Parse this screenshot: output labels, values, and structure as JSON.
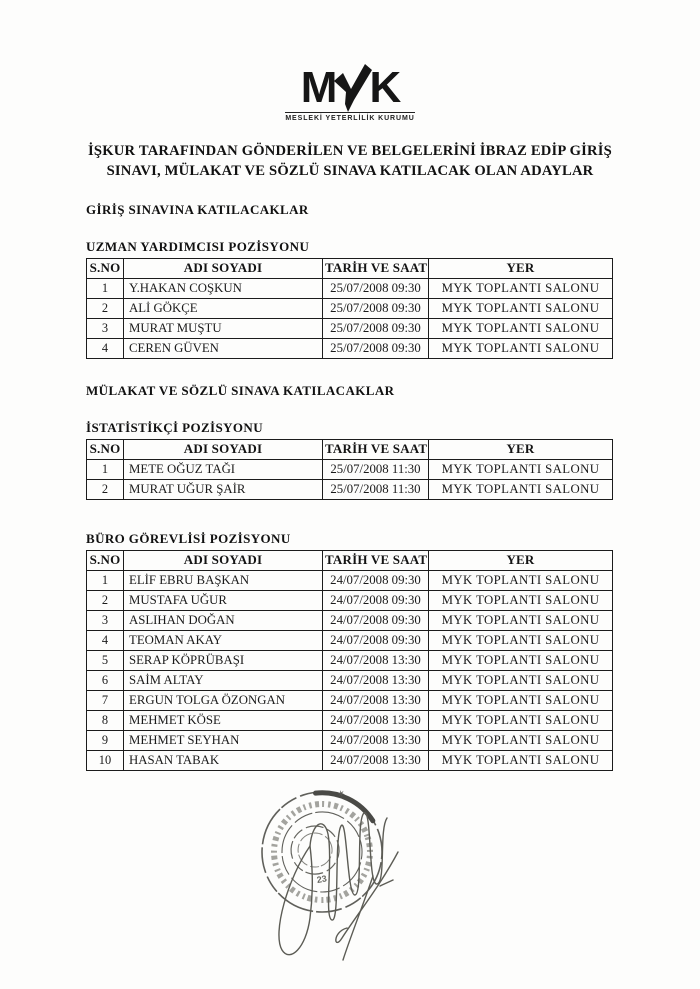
{
  "page": {
    "background": "#fdfdfc",
    "text_color": "#141414"
  },
  "logo": {
    "m": "M",
    "k": "K",
    "checkmark_icon": "check-mark-as-letter-Y",
    "caption": "MESLEKİ YETERLİLİK KURUMU"
  },
  "title": {
    "line1": "İŞKUR TARAFINDAN GÖNDERİLEN VE BELGELERİNİ İBRAZ EDİP GİRİŞ",
    "line2": "SINAVI, MÜLAKAT VE SÖZLÜ SINAVA KATILACAK OLAN ADAYLAR"
  },
  "sections": [
    {
      "heading": "GİRİŞ SINAVINA KATILACAKLAR",
      "tables": [
        {
          "caption": "UZMAN YARDIMCISI POZİSYONU",
          "columns": [
            "S.NO",
            "ADI SOYADI",
            "TARİH VE SAAT",
            "YER"
          ],
          "rows": [
            [
              "1",
              "Y.HAKAN COŞKUN",
              "25/07/2008 09:30",
              "MYK TOPLANTI SALONU"
            ],
            [
              "2",
              "ALİ GÖKÇE",
              "25/07/2008 09:30",
              "MYK TOPLANTI SALONU"
            ],
            [
              "3",
              "MURAT MUŞTU",
              "25/07/2008 09:30",
              "MYK TOPLANTI SALONU"
            ],
            [
              "4",
              "CEREN GÜVEN",
              "25/07/2008 09:30",
              "MYK TOPLANTI SALONU"
            ]
          ]
        }
      ]
    },
    {
      "heading": "MÜLAKAT VE SÖZLÜ SINAVA KATILACAKLAR",
      "tables": [
        {
          "caption": "İSTATİSTİKÇİ POZİSYONU",
          "columns": [
            "S.NO",
            "ADI SOYADI",
            "TARİH VE SAAT",
            "YER"
          ],
          "rows": [
            [
              "1",
              "METE OĞUZ TAĞI",
              "25/07/2008 11:30",
              "MYK TOPLANTI SALONU"
            ],
            [
              "2",
              "MURAT UĞUR ŞAİR",
              "25/07/2008 11:30",
              "MYK TOPLANTI SALONU"
            ]
          ]
        },
        {
          "caption": "BÜRO GÖREVLİSİ POZİSYONU",
          "columns": [
            "S.NO",
            "ADI SOYADI",
            "TARİH VE SAAT",
            "YER"
          ],
          "rows": [
            [
              "1",
              "ELİF EBRU BAŞKAN",
              "24/07/2008 09:30",
              "MYK TOPLANTI SALONU"
            ],
            [
              "2",
              "MUSTAFA UĞUR",
              "24/07/2008 09:30",
              "MYK TOPLANTI SALONU"
            ],
            [
              "3",
              "ASLIHAN DOĞAN",
              "24/07/2008 09:30",
              "MYK TOPLANTI SALONU"
            ],
            [
              "4",
              "TEOMAN AKAY",
              "24/07/2008 09:30",
              "MYK TOPLANTI SALONU"
            ],
            [
              "5",
              "SERAP KÖPRÜBAŞI",
              "24/07/2008 13:30",
              "MYK TOPLANTI SALONU"
            ],
            [
              "6",
              "SAİM ALTAY",
              "24/07/2008 13:30",
              "MYK TOPLANTI SALONU"
            ],
            [
              "7",
              "ERGUN TOLGA ÖZONGAN",
              "24/07/2008 13:30",
              "MYK TOPLANTI SALONU"
            ],
            [
              "8",
              "MEHMET KÖSE",
              "24/07/2008 13:30",
              "MYK TOPLANTI SALONU"
            ],
            [
              "9",
              "MEHMET SEYHAN",
              "24/07/2008 13:30",
              "MYK TOPLANTI SALONU"
            ],
            [
              "10",
              "HASAN TABAK",
              "24/07/2008 13:30",
              "MYK TOPLANTI SALONU"
            ]
          ]
        }
      ]
    }
  ],
  "stamp": {
    "kind": "round-ink-stamp",
    "visible_number": "23",
    "ink_color": "#45453f"
  },
  "signature": {
    "kind": "handwritten-signature",
    "ink_color": "#5c5c55"
  }
}
